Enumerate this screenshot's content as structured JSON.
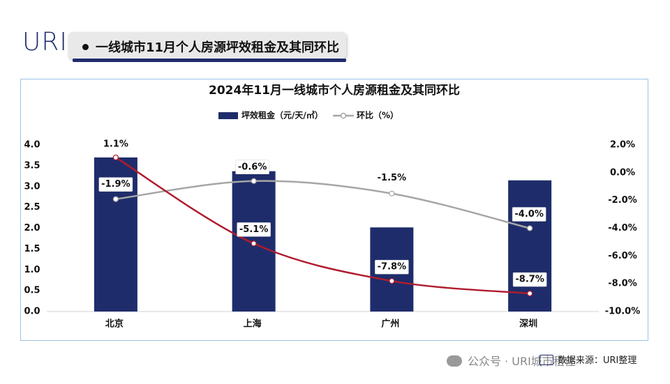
{
  "logo": "URI",
  "header": {
    "title": "一线城市11月个人房源坪效租金及其同环比"
  },
  "chart_data": {
    "type": "bar+line",
    "title": "2024年11月一线城市个人房源租金及其同环比",
    "categories": [
      "北京",
      "上海",
      "广州",
      "深圳"
    ],
    "bar_series": {
      "name": "坪效租金（元/天/㎡）",
      "values": [
        3.7,
        3.37,
        2.02,
        3.15
      ],
      "color": "#1f2c6b"
    },
    "line_series": [
      {
        "name": "环比（%）",
        "values": [
          -1.9,
          -0.6,
          -1.5,
          -4.0
        ],
        "labels": [
          "-1.9%",
          "-0.6%",
          "-1.5%",
          "-4.0%"
        ],
        "color": "#a6a6a6"
      },
      {
        "name": "",
        "values": [
          1.1,
          -5.1,
          -7.8,
          -8.7
        ],
        "labels": [
          "1.1%",
          "-5.1%",
          "-7.8%",
          "-8.7%"
        ],
        "color": "#b01c2e"
      }
    ],
    "y_left": {
      "min": 0,
      "max": 4,
      "step": 0.5,
      "ticks": [
        "0.0",
        "0.5",
        "1.0",
        "1.5",
        "2.0",
        "2.5",
        "3.0",
        "3.5",
        "4.0"
      ]
    },
    "y_right": {
      "min": -10,
      "max": 2,
      "step": 2,
      "ticks": [
        "-10.0%",
        "-8.0%",
        "-6.0%",
        "-4.0%",
        "-2.0%",
        "0.0%",
        "2.0%"
      ]
    },
    "legend_position": "top-center",
    "grid": false
  },
  "footer": {
    "wechat": "公众号 · URI城市租住",
    "source": "数据来源：URI整理"
  },
  "watermark": "URI城市租住"
}
